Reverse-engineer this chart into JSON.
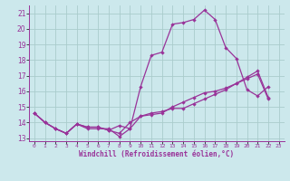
{
  "xlabel": "Windchill (Refroidissement éolien,°C)",
  "bg_color": "#cce8ec",
  "grid_color": "#aacccc",
  "line_color": "#993399",
  "xlim_min": -0.5,
  "xlim_max": 23.5,
  "ylim_min": 12.8,
  "ylim_max": 21.5,
  "xticks": [
    0,
    1,
    2,
    3,
    4,
    5,
    6,
    7,
    8,
    9,
    10,
    11,
    12,
    13,
    14,
    15,
    16,
    17,
    18,
    19,
    20,
    21,
    22,
    23
  ],
  "yticks": [
    13,
    14,
    15,
    16,
    17,
    18,
    19,
    20,
    21
  ],
  "line1_x": [
    0,
    1,
    2,
    3,
    4,
    5,
    6,
    7,
    8,
    9,
    10,
    11,
    12,
    13,
    14,
    15,
    16,
    17,
    18,
    19,
    20,
    21,
    22
  ],
  "line1_y": [
    14.6,
    14.0,
    13.6,
    13.3,
    13.9,
    13.6,
    13.6,
    13.6,
    13.1,
    13.6,
    16.3,
    18.3,
    18.5,
    20.3,
    20.4,
    20.6,
    21.2,
    20.6,
    18.8,
    18.1,
    16.1,
    15.7,
    16.3
  ],
  "line2_x": [
    0,
    1,
    2,
    3,
    4,
    5,
    6,
    7,
    8,
    9,
    10,
    11,
    12,
    13,
    14,
    15,
    16,
    17,
    18,
    19,
    20,
    21,
    22
  ],
  "line2_y": [
    14.6,
    14.0,
    13.6,
    13.3,
    13.9,
    13.7,
    13.7,
    13.5,
    13.3,
    14.0,
    14.4,
    14.5,
    14.6,
    15.0,
    15.3,
    15.6,
    15.9,
    16.0,
    16.2,
    16.5,
    16.8,
    17.1,
    15.5
  ],
  "line3_x": [
    0,
    1,
    2,
    3,
    4,
    5,
    6,
    7,
    8,
    9,
    10,
    11,
    12,
    13,
    14,
    15,
    16,
    17,
    18,
    19,
    20,
    21,
    22
  ],
  "line3_y": [
    14.6,
    14.0,
    13.6,
    13.3,
    13.9,
    13.7,
    13.7,
    13.5,
    13.8,
    13.6,
    14.4,
    14.6,
    14.7,
    14.9,
    14.9,
    15.2,
    15.5,
    15.8,
    16.1,
    16.5,
    16.9,
    17.3,
    15.6
  ]
}
